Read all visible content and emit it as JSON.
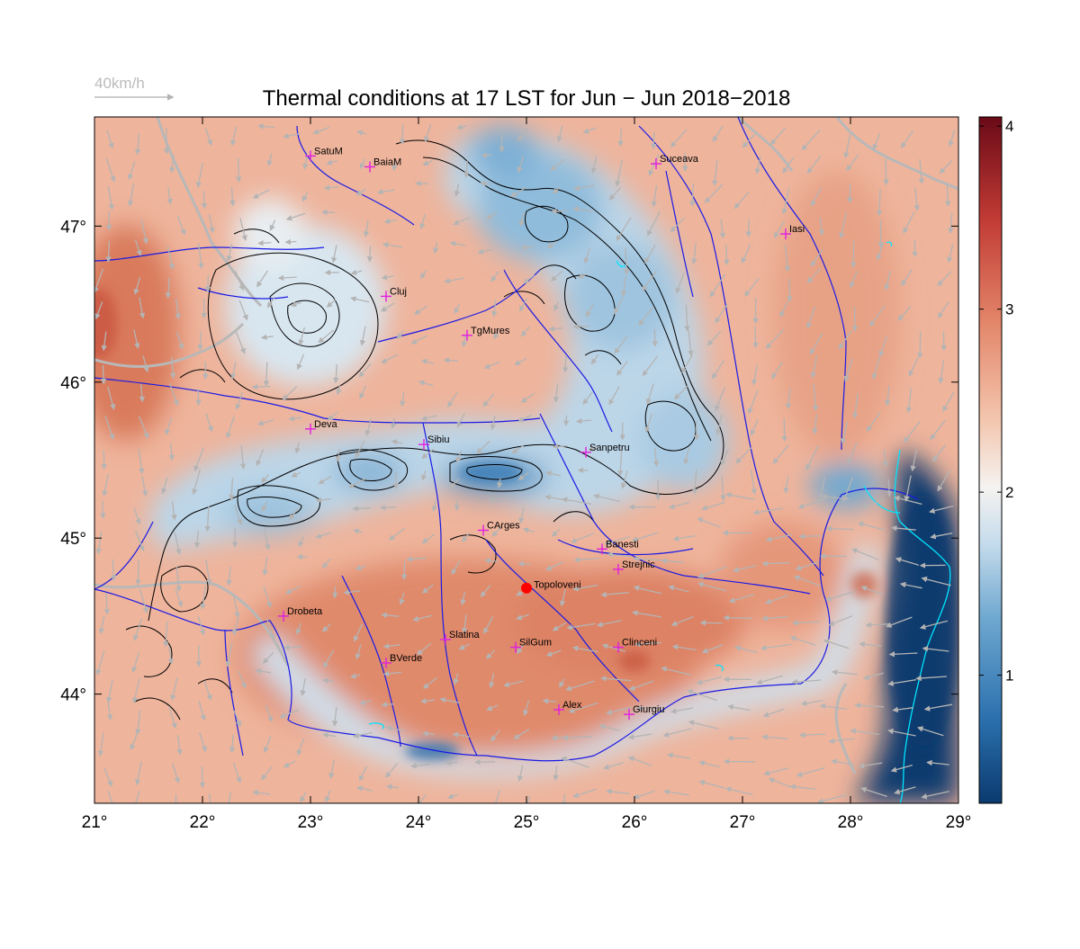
{
  "title": "Thermal conditions at 17 LST for Jun − Jun  2018−2018",
  "wind_legend": {
    "label": "40km/h",
    "speed_kmh": 40
  },
  "extent": {
    "lon": [
      21,
      29
    ],
    "lat": [
      43.3,
      47.7
    ]
  },
  "axes": {
    "x_ticks": [
      {
        "value": 21,
        "label": "21°"
      },
      {
        "value": 22,
        "label": "22°"
      },
      {
        "value": 23,
        "label": "23°"
      },
      {
        "value": 24,
        "label": "24°"
      },
      {
        "value": 25,
        "label": "25°"
      },
      {
        "value": 26,
        "label": "26°"
      },
      {
        "value": 27,
        "label": "27°"
      },
      {
        "value": 28,
        "label": "28°"
      },
      {
        "value": 29,
        "label": "29°"
      }
    ],
    "y_ticks": [
      {
        "value": 44,
        "label": "44°"
      },
      {
        "value": 45,
        "label": "45°"
      },
      {
        "value": 46,
        "label": "46°"
      },
      {
        "value": 47,
        "label": "47°"
      }
    ]
  },
  "colorbar": {
    "min": 0.3,
    "max": 4.05,
    "ticks": [
      {
        "value": 1,
        "label": "1"
      },
      {
        "value": 2,
        "label": "2"
      },
      {
        "value": 3,
        "label": "3"
      },
      {
        "value": 4,
        "label": "4"
      }
    ],
    "colors": [
      "#0b3a6e",
      "#2a6fad",
      "#6fa8d0",
      "#c6dcec",
      "#f5f3f1",
      "#f3c5ad",
      "#e3866a",
      "#c23b35",
      "#6a0a17"
    ]
  },
  "cities": [
    {
      "name": "SatuM",
      "lon": 23.0,
      "lat": 47.45
    },
    {
      "name": "BaiaM",
      "lon": 23.55,
      "lat": 47.38
    },
    {
      "name": "Suceava",
      "lon": 26.2,
      "lat": 47.4
    },
    {
      "name": "Iasi",
      "lon": 27.4,
      "lat": 46.95
    },
    {
      "name": "Cluj",
      "lon": 23.7,
      "lat": 46.55
    },
    {
      "name": "TgMures",
      "lon": 24.45,
      "lat": 46.3
    },
    {
      "name": "Deva",
      "lon": 23.0,
      "lat": 45.7
    },
    {
      "name": "Sibiu",
      "lon": 24.05,
      "lat": 45.6
    },
    {
      "name": "Sanpetru",
      "lon": 25.55,
      "lat": 45.55
    },
    {
      "name": "CArges",
      "lon": 24.6,
      "lat": 45.05
    },
    {
      "name": "Banesti",
      "lon": 25.7,
      "lat": 44.93
    },
    {
      "name": "Strejnic",
      "lon": 25.85,
      "lat": 44.8
    },
    {
      "name": "Drobeta",
      "lon": 22.75,
      "lat": 44.5
    },
    {
      "name": "Slatina",
      "lon": 24.25,
      "lat": 44.35
    },
    {
      "name": "SilGum",
      "lon": 24.9,
      "lat": 44.3
    },
    {
      "name": "Clinceni",
      "lon": 25.85,
      "lat": 44.3
    },
    {
      "name": "BVerde",
      "lon": 23.7,
      "lat": 44.2
    },
    {
      "name": "Alex",
      "lon": 25.3,
      "lat": 43.9
    },
    {
      "name": "Giurgiu",
      "lon": 25.95,
      "lat": 43.87
    }
  ],
  "highlight_site": {
    "name": "Topoloveni",
    "lon": 25.0,
    "lat": 44.68,
    "color": "#ff0000"
  },
  "colors": {
    "city_marker": "#e020e0",
    "rivers": "#1a1ae6",
    "borders": "#b8b8b8",
    "contours": "#000000",
    "coast": "#00e5ff",
    "wind_arrows": "#b4b4b4"
  }
}
